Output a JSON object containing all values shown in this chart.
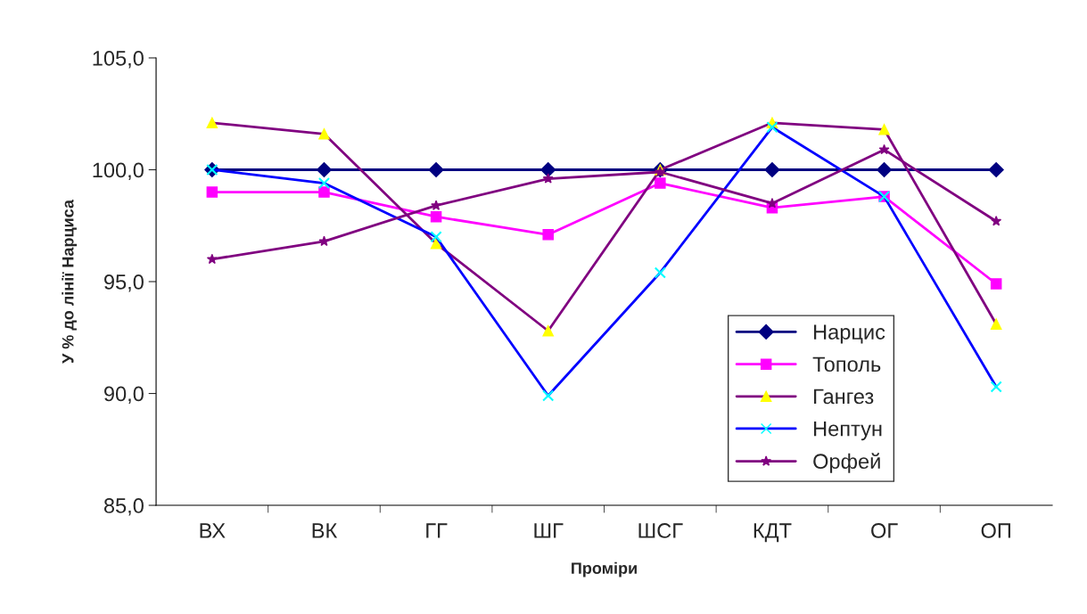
{
  "chart_data": {
    "type": "line",
    "xlabel": "Проміри",
    "ylabel": "У % до лінії Нарциса",
    "categories": [
      "ВХ",
      "ВК",
      "ГГ",
      "ШГ",
      "ШСГ",
      "КДТ",
      "ОГ",
      "ОП"
    ],
    "series": [
      {
        "name": "Нарцис",
        "color": "#000080",
        "marker": "diamond",
        "values": [
          100.0,
          100.0,
          100.0,
          100.0,
          100.0,
          100.0,
          100.0,
          100.0
        ]
      },
      {
        "name": "Тополь",
        "color": "#ff00ff",
        "marker": "square",
        "values": [
          99.0,
          99.0,
          97.9,
          97.1,
          99.4,
          98.3,
          98.8,
          94.9
        ]
      },
      {
        "name": "Гангез",
        "color": "#800080",
        "colors": [
          "#ffff00",
          "#ffff00",
          "#ffff00",
          "#ffff00",
          "#ffff00",
          "#ffff00",
          "#ffff00",
          "#ffff00"
        ],
        "marker": "triangle",
        "values": [
          102.1,
          101.6,
          96.7,
          92.8,
          100.0,
          102.1,
          101.8,
          93.1
        ]
      },
      {
        "name": "Нептун",
        "color": "#0000ff",
        "colors": [
          "#00ffff",
          "#00ffff",
          "#00ffff",
          "#00ffff",
          "#00ffff",
          "#00ffff",
          "#00ffff",
          "#00ffff"
        ],
        "marker": "cross",
        "values": [
          100.0,
          99.4,
          97.0,
          89.9,
          95.4,
          101.9,
          98.8,
          90.3
        ]
      },
      {
        "name": "Орфей",
        "color": "#800080",
        "marker": "star",
        "values": [
          96.0,
          96.8,
          98.4,
          99.6,
          99.9,
          98.5,
          100.9,
          97.7
        ]
      }
    ],
    "ylim": [
      85,
      105
    ],
    "yticks": [
      {
        "value": 85,
        "label": "85,0"
      },
      {
        "value": 90,
        "label": "90,0"
      },
      {
        "value": 95,
        "label": "95,0"
      },
      {
        "value": 100,
        "label": "100,0"
      },
      {
        "value": 105,
        "label": "105,0"
      }
    ],
    "grid": false,
    "legend": "right"
  }
}
